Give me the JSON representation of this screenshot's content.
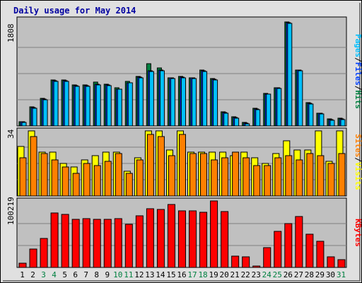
{
  "chart_data": {
    "type": "bar",
    "title": "Daily usage for May 2014",
    "categories": [
      "1",
      "2",
      "3",
      "4",
      "5",
      "6",
      "7",
      "8",
      "9",
      "10",
      "11",
      "12",
      "13",
      "14",
      "15",
      "16",
      "17",
      "18",
      "19",
      "20",
      "21",
      "22",
      "23",
      "24",
      "25",
      "26",
      "27",
      "28",
      "29",
      "30",
      "31"
    ],
    "weekend_days": [
      "3",
      "4",
      "10",
      "11",
      "17",
      "18",
      "24",
      "25",
      "31"
    ],
    "panels": [
      {
        "name": "pages-files-hits",
        "ymax_label": "1808",
        "ymax": 1808,
        "legend": [
          "Pages",
          "/",
          "Files",
          "/",
          "Hits"
        ],
        "legend_colors": [
          "#00c0ff",
          "#000000",
          "#0040ff",
          "#000000",
          "#008040"
        ],
        "series": [
          {
            "name": "Hits",
            "color": "#008040",
            "values": [
              75,
              330,
              475,
              790,
              790,
              705,
              705,
              755,
              715,
              655,
              765,
              855,
              1080,
              1000,
              835,
              855,
              835,
              960,
              815,
              245,
              155,
              60,
              300,
              565,
              665,
              1790,
              970,
              400,
              225,
              120,
              135
            ]
          },
          {
            "name": "Files",
            "color": "#0040ff",
            "values": [
              70,
              320,
              465,
              780,
              780,
              695,
              695,
              715,
              705,
              640,
              750,
              845,
              950,
              965,
              825,
              845,
              825,
              950,
              805,
              230,
              145,
              50,
              290,
              555,
              655,
              1780,
              960,
              390,
              215,
              110,
              125
            ]
          },
          {
            "name": "Pages",
            "color": "#00c0ff",
            "values": [
              65,
              310,
              455,
              770,
              770,
              685,
              685,
              705,
              695,
              630,
              740,
              835,
              940,
              955,
              815,
              835,
              815,
              940,
              795,
              220,
              135,
              40,
              280,
              545,
              645,
              1770,
              950,
              380,
              205,
              100,
              115
            ]
          }
        ]
      },
      {
        "name": "visits-sites",
        "ymax_label": "34",
        "ymax": 34,
        "legend": [
          "Sites",
          "/",
          "Visits"
        ],
        "legend_colors": [
          "#ff8000",
          "#000000",
          "#ffff00"
        ],
        "series": [
          {
            "name": "Visits",
            "color": "#ffff00",
            "values": [
              26,
              34,
              23,
              23,
              17,
              15,
              19,
              21,
              23,
              23,
              13,
              20,
              34,
              34,
              24,
              34,
              23,
              23,
              23,
              23,
              21,
              23,
              20,
              17,
              22,
              29,
              24,
              24,
              34,
              18,
              34
            ]
          },
          {
            "name": "Sites",
            "color": "#ff8000",
            "values": [
              20,
              31,
              22,
              19,
              15,
              12,
              17,
              16,
              18,
              22,
              12,
              19,
              32,
              31,
              21,
              32,
              22,
              22,
              19,
              20,
              23,
              20,
              16,
              16,
              20,
              21,
              19,
              22,
              21,
              17,
              22
            ]
          }
        ]
      },
      {
        "name": "kbytes",
        "ymax_label": "100219",
        "ymax": 100219,
        "legend": [
          "KBytes"
        ],
        "legend_colors": [
          "#ff0000"
        ],
        "series": [
          {
            "name": "KBytes",
            "color": "#ff0000",
            "values": [
              6500,
              28000,
              44000,
              83000,
              81000,
              73000,
              74500,
              73000,
              73000,
              74000,
              66000,
              79000,
              89000,
              88000,
              96000,
              86000,
              86000,
              84000,
              101000,
              85000,
              17000,
              16000,
              2000,
              30000,
              55000,
              67000,
              78000,
              51000,
              40000,
              16500,
              12000
            ]
          }
        ]
      }
    ]
  }
}
